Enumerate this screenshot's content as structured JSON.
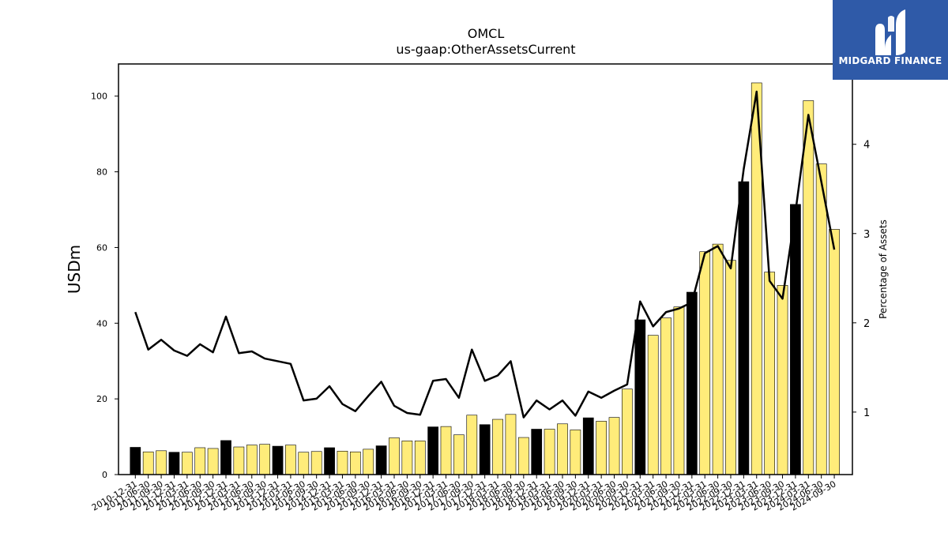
{
  "chart_data": {
    "type": "bar+line",
    "title": "OMCL",
    "subtitle": "us-gaap:OtherAssetsCurrent",
    "ylabel": "USDm",
    "y2label": "Percentage of Assets",
    "ylim": [
      0,
      108.5
    ],
    "y2lim": [
      0.3,
      4.9
    ],
    "yticks": [
      0,
      20,
      40,
      60,
      80,
      100
    ],
    "y2ticks": [
      1,
      2,
      3,
      4
    ],
    "categories": [
      "2010-12-31",
      "2011-06-30",
      "2011-09-30",
      "2011-12-31",
      "2012-03-31",
      "2012-06-30",
      "2012-09-30",
      "2012-12-31",
      "2013-03-31",
      "2013-06-30",
      "2013-09-30",
      "2013-12-31",
      "2014-03-31",
      "2014-06-30",
      "2014-09-30",
      "2014-12-31",
      "2015-03-31",
      "2015-06-30",
      "2015-09-30",
      "2015-12-31",
      "2016-03-31",
      "2016-06-30",
      "2016-09-30",
      "2016-12-31",
      "2017-03-31",
      "2017-06-30",
      "2017-09-30",
      "2017-12-31",
      "2018-03-31",
      "2018-06-30",
      "2018-09-30",
      "2018-12-31",
      "2019-03-31",
      "2019-06-30",
      "2019-09-30",
      "2019-12-31",
      "2020-03-31",
      "2020-06-30",
      "2020-09-30",
      "2020-12-31",
      "2021-03-31",
      "2021-06-30",
      "2021-09-30",
      "2021-12-31",
      "2022-03-31",
      "2022-06-30",
      "2022-09-30",
      "2022-12-31",
      "2023-03-31",
      "2023-06-30",
      "2023-09-30",
      "2023-12-31",
      "2024-03-31",
      "2024-06-30",
      "2024-09-30"
    ],
    "series": [
      {
        "kind": "bar",
        "values": [
          7.2,
          6.0,
          6.3,
          5.9,
          5.9,
          7.1,
          6.9,
          9.0,
          7.3,
          7.8,
          8.0,
          7.5,
          7.8,
          5.9,
          6.1,
          7.1,
          6.2,
          6.0,
          6.7,
          7.6,
          9.7,
          8.9,
          8.9,
          12.6,
          12.7,
          10.5,
          15.7,
          13.2,
          14.6,
          15.9,
          9.8,
          12.0,
          12.0,
          13.4,
          11.8,
          15.0,
          14.1,
          15.1,
          22.6,
          40.9,
          36.8,
          41.4,
          44.3,
          48.2,
          58.9,
          60.9,
          56.6,
          77.4,
          103.5,
          53.5,
          50.0,
          71.4,
          98.8,
          82.1,
          64.8
        ],
        "dark_flags": [
          1,
          0,
          0,
          1,
          0,
          0,
          0,
          1,
          0,
          0,
          0,
          1,
          0,
          0,
          0,
          1,
          0,
          0,
          0,
          1,
          0,
          0,
          0,
          1,
          0,
          0,
          0,
          1,
          0,
          0,
          0,
          1,
          0,
          0,
          0,
          1,
          0,
          0,
          0,
          1,
          0,
          0,
          0,
          1,
          0,
          0,
          0,
          1,
          0,
          0,
          0,
          1,
          0,
          0,
          0
        ],
        "colors": {
          "highlight": "#000000",
          "normal": "#ffec7a"
        }
      },
      {
        "kind": "line",
        "axis": "right",
        "values": [
          2.12,
          1.7,
          1.81,
          1.69,
          1.63,
          1.76,
          1.67,
          2.07,
          1.66,
          1.68,
          1.6,
          1.57,
          1.54,
          1.13,
          1.15,
          1.29,
          1.09,
          1.01,
          1.18,
          1.34,
          1.07,
          0.99,
          0.97,
          1.35,
          1.37,
          1.16,
          1.7,
          1.35,
          1.41,
          1.57,
          0.94,
          1.13,
          1.03,
          1.13,
          0.96,
          1.23,
          1.16,
          1.24,
          1.31,
          2.24,
          1.96,
          2.12,
          2.16,
          2.23,
          2.78,
          2.86,
          2.61,
          3.72,
          4.59,
          2.47,
          2.27,
          3.24,
          4.33,
          3.58,
          2.82
        ],
        "color": "#000000"
      }
    ]
  },
  "logo": {
    "text": "MIDGARD FINANCE",
    "background": "#2f5aa8"
  }
}
